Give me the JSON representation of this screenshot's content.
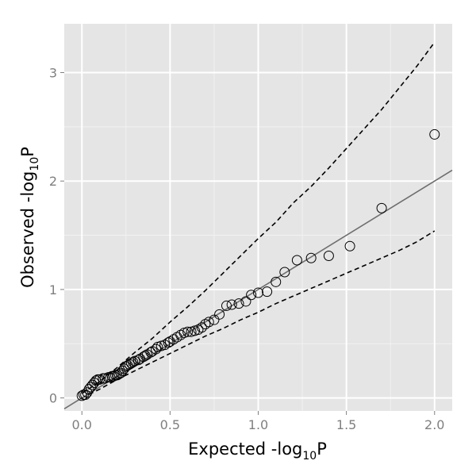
{
  "chart_data": {
    "type": "scatter",
    "title": "",
    "xlabel": {
      "main": "Expected -log",
      "sub": "10",
      "end": "P"
    },
    "ylabel": {
      "main": "Observed -log",
      "sub": "10",
      "end": "P"
    },
    "xlim": [
      -0.1,
      2.1
    ],
    "ylim": [
      -0.12,
      3.45
    ],
    "x_ticks": [
      0.0,
      0.5,
      1.0,
      1.5,
      2.0
    ],
    "x_tick_labels": [
      "0.0",
      "0.5",
      "1.0",
      "1.5",
      "2.0"
    ],
    "y_ticks": [
      0,
      1,
      2,
      3
    ],
    "y_tick_labels": [
      "0",
      "1",
      "2",
      "3"
    ],
    "grid": true,
    "colors": {
      "panel": "#e5e5e5",
      "grid_major": "#ffffff",
      "grid_minor": "#f2f2f2",
      "reference_line": "#6e6e6e",
      "point_stroke": "#000000",
      "band": "#000000"
    },
    "points": [
      [
        0.0,
        0.02
      ],
      [
        0.01,
        0.03
      ],
      [
        0.02,
        0.03
      ],
      [
        0.03,
        0.05
      ],
      [
        0.04,
        0.08
      ],
      [
        0.05,
        0.1
      ],
      [
        0.06,
        0.12
      ],
      [
        0.07,
        0.14
      ],
      [
        0.08,
        0.16
      ],
      [
        0.09,
        0.17
      ],
      [
        0.1,
        0.17
      ],
      [
        0.12,
        0.18
      ],
      [
        0.13,
        0.18
      ],
      [
        0.15,
        0.19
      ],
      [
        0.16,
        0.19
      ],
      [
        0.17,
        0.2
      ],
      [
        0.18,
        0.2
      ],
      [
        0.19,
        0.21
      ],
      [
        0.2,
        0.21
      ],
      [
        0.21,
        0.22
      ],
      [
        0.22,
        0.23
      ],
      [
        0.23,
        0.25
      ],
      [
        0.24,
        0.27
      ],
      [
        0.25,
        0.29
      ],
      [
        0.26,
        0.3
      ],
      [
        0.27,
        0.31
      ],
      [
        0.28,
        0.32
      ],
      [
        0.29,
        0.33
      ],
      [
        0.3,
        0.34
      ],
      [
        0.32,
        0.35
      ],
      [
        0.33,
        0.36
      ],
      [
        0.35,
        0.38
      ],
      [
        0.36,
        0.39
      ],
      [
        0.37,
        0.4
      ],
      [
        0.39,
        0.42
      ],
      [
        0.4,
        0.43
      ],
      [
        0.42,
        0.45
      ],
      [
        0.43,
        0.47
      ],
      [
        0.45,
        0.48
      ],
      [
        0.47,
        0.49
      ],
      [
        0.49,
        0.51
      ],
      [
        0.5,
        0.52
      ],
      [
        0.52,
        0.54
      ],
      [
        0.54,
        0.56
      ],
      [
        0.56,
        0.58
      ],
      [
        0.58,
        0.6
      ],
      [
        0.6,
        0.61
      ],
      [
        0.62,
        0.61
      ],
      [
        0.64,
        0.62
      ],
      [
        0.66,
        0.63
      ],
      [
        0.68,
        0.65
      ],
      [
        0.7,
        0.68
      ],
      [
        0.72,
        0.7
      ],
      [
        0.75,
        0.72
      ],
      [
        0.78,
        0.77
      ],
      [
        0.82,
        0.85
      ],
      [
        0.85,
        0.86
      ],
      [
        0.89,
        0.87
      ],
      [
        0.93,
        0.89
      ],
      [
        0.96,
        0.95
      ],
      [
        1.0,
        0.97
      ],
      [
        1.05,
        0.98
      ],
      [
        1.1,
        1.07
      ],
      [
        1.15,
        1.16
      ],
      [
        1.22,
        1.27
      ],
      [
        1.3,
        1.29
      ],
      [
        1.4,
        1.31
      ],
      [
        1.52,
        1.4
      ],
      [
        1.7,
        1.75
      ],
      [
        2.0,
        2.43
      ]
    ],
    "reference_line": {
      "slope": 1,
      "intercept": 0
    },
    "upper_band": [
      [
        0.0,
        0.04
      ],
      [
        0.1,
        0.15
      ],
      [
        0.2,
        0.28
      ],
      [
        0.3,
        0.42
      ],
      [
        0.4,
        0.55
      ],
      [
        0.5,
        0.7
      ],
      [
        0.6,
        0.84
      ],
      [
        0.7,
        0.99
      ],
      [
        0.8,
        1.15
      ],
      [
        0.9,
        1.31
      ],
      [
        1.0,
        1.47
      ],
      [
        1.1,
        1.62
      ],
      [
        1.2,
        1.8
      ],
      [
        1.3,
        1.95
      ],
      [
        1.4,
        2.12
      ],
      [
        1.5,
        2.3
      ],
      [
        1.6,
        2.48
      ],
      [
        1.7,
        2.66
      ],
      [
        1.8,
        2.86
      ],
      [
        1.9,
        3.06
      ],
      [
        2.0,
        3.28
      ]
    ],
    "lower_band": [
      [
        0.0,
        0.0
      ],
      [
        0.1,
        0.08
      ],
      [
        0.2,
        0.17
      ],
      [
        0.3,
        0.25
      ],
      [
        0.4,
        0.33
      ],
      [
        0.5,
        0.41
      ],
      [
        0.6,
        0.49
      ],
      [
        0.7,
        0.57
      ],
      [
        0.8,
        0.64
      ],
      [
        0.9,
        0.72
      ],
      [
        1.0,
        0.79
      ],
      [
        1.1,
        0.87
      ],
      [
        1.2,
        0.94
      ],
      [
        1.3,
        1.01
      ],
      [
        1.4,
        1.08
      ],
      [
        1.5,
        1.15
      ],
      [
        1.6,
        1.22
      ],
      [
        1.7,
        1.29
      ],
      [
        1.8,
        1.36
      ],
      [
        1.9,
        1.44
      ],
      [
        2.0,
        1.54
      ]
    ]
  }
}
